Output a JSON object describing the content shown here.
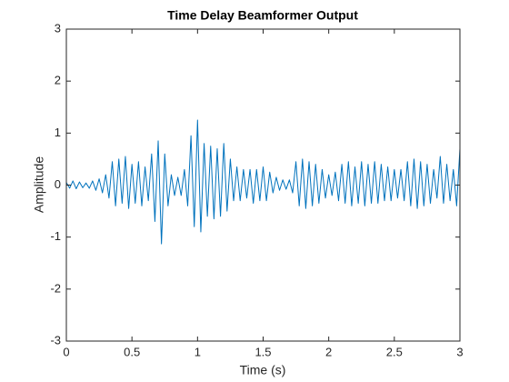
{
  "chart_data": {
    "type": "line",
    "title": "Time Delay Beamformer Output",
    "xlabel": "Time (s)",
    "ylabel": "Amplitude",
    "x": [
      0,
      0.025,
      0.05,
      0.075,
      0.1,
      0.125,
      0.15,
      0.175,
      0.2,
      0.225,
      0.25,
      0.275,
      0.3,
      0.325,
      0.35,
      0.375,
      0.4,
      0.425,
      0.45,
      0.475,
      0.5,
      0.525,
      0.55,
      0.575,
      0.6,
      0.625,
      0.65,
      0.675,
      0.7,
      0.725,
      0.75,
      0.775,
      0.8,
      0.825,
      0.85,
      0.875,
      0.9,
      0.925,
      0.95,
      0.975,
      1,
      1.025,
      1.05,
      1.075,
      1.1,
      1.125,
      1.15,
      1.175,
      1.2,
      1.225,
      1.25,
      1.275,
      1.3,
      1.325,
      1.35,
      1.375,
      1.4,
      1.425,
      1.45,
      1.475,
      1.5,
      1.525,
      1.55,
      1.575,
      1.6,
      1.625,
      1.65,
      1.675,
      1.7,
      1.725,
      1.75,
      1.775,
      1.8,
      1.825,
      1.85,
      1.875,
      1.9,
      1.925,
      1.95,
      1.975,
      2,
      2.025,
      2.05,
      2.075,
      2.1,
      2.125,
      2.15,
      2.175,
      2.2,
      2.225,
      2.25,
      2.275,
      2.3,
      2.325,
      2.35,
      2.375,
      2.4,
      2.425,
      2.45,
      2.475,
      2.5,
      2.525,
      2.55,
      2.575,
      2.6,
      2.625,
      2.65,
      2.675,
      2.7,
      2.725,
      2.75,
      2.775,
      2.8,
      2.825,
      2.85,
      2.875,
      2.9,
      2.925,
      2.95,
      2.975,
      3
    ],
    "series": [
      {
        "color": "#0072bd",
        "values": [
          0.05,
          -0.06,
          0.08,
          -0.07,
          0.06,
          -0.05,
          0.04,
          -0.06,
          0.08,
          -0.1,
          0.12,
          -0.15,
          0.2,
          -0.25,
          0.45,
          -0.4,
          0.5,
          -0.35,
          0.55,
          -0.45,
          0.4,
          -0.35,
          0.45,
          -0.4,
          0.35,
          -0.3,
          0.6,
          -0.7,
          0.85,
          -1.13,
          0.6,
          -0.4,
          0.2,
          -0.2,
          0.15,
          -0.2,
          0.3,
          -0.4,
          0.95,
          -0.8,
          1.25,
          -0.9,
          0.8,
          -0.6,
          0.75,
          -0.65,
          0.7,
          -0.6,
          0.8,
          -0.5,
          0.5,
          -0.3,
          0.35,
          -0.3,
          0.3,
          -0.25,
          0.3,
          -0.35,
          0.3,
          -0.3,
          0.35,
          -0.3,
          0.25,
          -0.15,
          0.15,
          -0.1,
          0.1,
          -0.08,
          0.1,
          -0.15,
          0.45,
          -0.4,
          0.5,
          -0.45,
          0.45,
          -0.4,
          0.4,
          -0.35,
          0.3,
          -0.25,
          0.2,
          -0.2,
          0.25,
          -0.3,
          0.4,
          -0.35,
          0.45,
          -0.4,
          0.35,
          -0.35,
          0.45,
          -0.4,
          0.4,
          -0.35,
          0.45,
          -0.35,
          0.4,
          -0.3,
          0.35,
          -0.3,
          0.3,
          -0.25,
          0.3,
          -0.3,
          0.45,
          -0.4,
          0.5,
          -0.45,
          0.45,
          -0.4,
          0.4,
          -0.35,
          0.3,
          -0.25,
          0.55,
          -0.35,
          0.4,
          -0.3,
          0.3,
          -0.4,
          0.7
        ]
      }
    ],
    "xlim": [
      0,
      3
    ],
    "xticks": [
      0,
      0.5,
      1,
      1.5,
      2,
      2.5,
      3
    ],
    "ylim": [
      -3,
      3
    ],
    "yticks": [
      -3,
      -2,
      -1,
      0,
      1,
      2,
      3
    ]
  }
}
